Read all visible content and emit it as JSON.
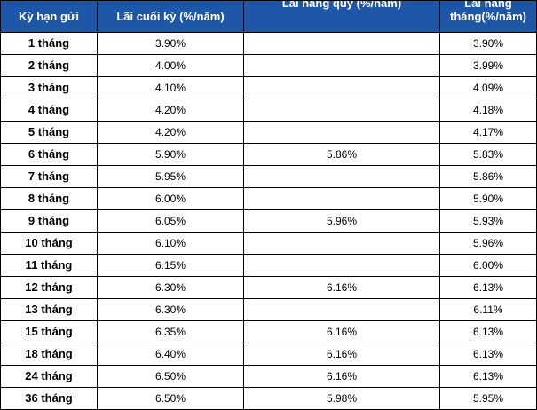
{
  "table": {
    "headers": [
      "Kỳ hạn gửi",
      "Lãi cuối kỳ (%/năm)",
      "Lãi hàng quý (%/năm)",
      "Lãi hàng tháng(%/năm)"
    ],
    "rows": [
      {
        "term": "1 tháng",
        "end": "3.90%",
        "quarterly": "",
        "monthly": "3.90%"
      },
      {
        "term": "2 tháng",
        "end": "4.00%",
        "quarterly": "",
        "monthly": "3.99%"
      },
      {
        "term": "3 tháng",
        "end": "4.10%",
        "quarterly": "",
        "monthly": "4.09%"
      },
      {
        "term": "4 tháng",
        "end": "4.20%",
        "quarterly": "",
        "monthly": "4.18%"
      },
      {
        "term": "5 tháng",
        "end": "4.20%",
        "quarterly": "",
        "monthly": "4.17%"
      },
      {
        "term": "6 tháng",
        "end": "5.90%",
        "quarterly": "5.86%",
        "monthly": "5.83%"
      },
      {
        "term": "7 tháng",
        "end": "5.95%",
        "quarterly": "",
        "monthly": "5.86%"
      },
      {
        "term": "8 tháng",
        "end": "6.00%",
        "quarterly": "",
        "monthly": "5.90%"
      },
      {
        "term": "9 tháng",
        "end": "6.05%",
        "quarterly": "5.96%",
        "monthly": "5.93%"
      },
      {
        "term": "10 tháng",
        "end": "6.10%",
        "quarterly": "",
        "monthly": "5.96%"
      },
      {
        "term": "11 tháng",
        "end": "6.15%",
        "quarterly": "",
        "monthly": "6.00%"
      },
      {
        "term": "12 tháng",
        "end": "6.30%",
        "quarterly": "6.16%",
        "monthly": "6.13%"
      },
      {
        "term": "13 tháng",
        "end": "6.30%",
        "quarterly": "",
        "monthly": "6.11%"
      },
      {
        "term": "15 tháng",
        "end": "6.35%",
        "quarterly": "6.16%",
        "monthly": "6.13%"
      },
      {
        "term": "18 tháng",
        "end": "6.40%",
        "quarterly": "6.16%",
        "monthly": "6.13%"
      },
      {
        "term": "24 tháng",
        "end": "6.50%",
        "quarterly": "6.16%",
        "monthly": "6.13%"
      },
      {
        "term": "36 tháng",
        "end": "6.50%",
        "quarterly": "5.98%",
        "monthly": "5.95%"
      }
    ]
  },
  "colors": {
    "header_bg": "#1e56a8",
    "header_text": "#ffffff",
    "border": "#000000"
  }
}
